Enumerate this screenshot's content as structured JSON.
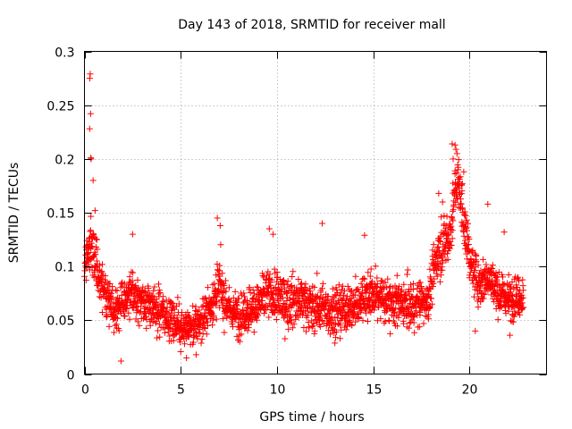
{
  "chart_data": {
    "type": "scatter",
    "title": "Day 143 of 2018, SRMTID for receiver mall",
    "xlabel": "GPS time / hours",
    "ylabel": "SRMTID / TECUs",
    "xlim": [
      0,
      24
    ],
    "ylim": [
      0,
      0.3
    ],
    "x_ticks": [
      "0",
      "5",
      "10",
      "15",
      "20"
    ],
    "y_ticks": [
      "0",
      "0.05",
      "0.1",
      "0.15",
      "0.2",
      "0.25",
      "0.3"
    ],
    "grid": true,
    "marker": "+",
    "series": [
      {
        "name": "SRMTID",
        "color": "#ff0000",
        "trend": [
          [
            0.0,
            0.095
          ],
          [
            0.15,
            0.115
          ],
          [
            0.3,
            0.125
          ],
          [
            0.45,
            0.11
          ],
          [
            0.6,
            0.1
          ],
          [
            0.8,
            0.09
          ],
          [
            1.0,
            0.078
          ],
          [
            1.3,
            0.068
          ],
          [
            1.6,
            0.062
          ],
          [
            2.0,
            0.066
          ],
          [
            2.5,
            0.075
          ],
          [
            3.0,
            0.068
          ],
          [
            3.5,
            0.062
          ],
          [
            4.0,
            0.058
          ],
          [
            4.5,
            0.052
          ],
          [
            5.0,
            0.045
          ],
          [
            5.5,
            0.042
          ],
          [
            6.0,
            0.048
          ],
          [
            6.5,
            0.062
          ],
          [
            7.0,
            0.082
          ],
          [
            7.3,
            0.07
          ],
          [
            7.6,
            0.058
          ],
          [
            8.0,
            0.056
          ],
          [
            8.5,
            0.06
          ],
          [
            9.0,
            0.064
          ],
          [
            9.5,
            0.075
          ],
          [
            10.0,
            0.072
          ],
          [
            10.5,
            0.066
          ],
          [
            11.0,
            0.07
          ],
          [
            11.5,
            0.066
          ],
          [
            12.0,
            0.062
          ],
          [
            12.5,
            0.06
          ],
          [
            13.0,
            0.058
          ],
          [
            13.5,
            0.06
          ],
          [
            14.0,
            0.062
          ],
          [
            14.5,
            0.072
          ],
          [
            15.0,
            0.074
          ],
          [
            15.5,
            0.07
          ],
          [
            16.0,
            0.066
          ],
          [
            16.5,
            0.064
          ],
          [
            17.0,
            0.063
          ],
          [
            17.5,
            0.066
          ],
          [
            17.9,
            0.072
          ],
          [
            18.3,
            0.11
          ],
          [
            18.7,
            0.12
          ],
          [
            19.0,
            0.13
          ],
          [
            19.3,
            0.18
          ],
          [
            19.5,
            0.17
          ],
          [
            19.8,
            0.13
          ],
          [
            20.1,
            0.1
          ],
          [
            20.5,
            0.085
          ],
          [
            21.0,
            0.09
          ],
          [
            21.5,
            0.075
          ],
          [
            22.0,
            0.07
          ],
          [
            22.5,
            0.072
          ],
          [
            22.8,
            0.07
          ]
        ],
        "spread": [
          [
            0.0,
            0.025
          ],
          [
            0.6,
            0.035
          ],
          [
            1.0,
            0.025
          ],
          [
            6.5,
            0.022
          ],
          [
            7.0,
            0.03
          ],
          [
            7.5,
            0.022
          ],
          [
            9.5,
            0.028
          ],
          [
            18.0,
            0.025
          ],
          [
            18.5,
            0.03
          ],
          [
            19.3,
            0.03
          ],
          [
            20.0,
            0.025
          ],
          [
            22.8,
            0.022
          ]
        ],
        "points": [
          [
            0.28,
            0.275
          ],
          [
            0.3,
            0.279
          ],
          [
            0.32,
            0.242
          ],
          [
            0.27,
            0.228
          ],
          [
            0.35,
            0.2
          ],
          [
            0.33,
            0.201
          ],
          [
            0.45,
            0.18
          ],
          [
            0.55,
            0.152
          ],
          [
            1.9,
            0.012
          ],
          [
            19.1,
            0.214
          ],
          [
            19.25,
            0.213
          ],
          [
            19.35,
            0.205
          ],
          [
            19.4,
            0.19
          ],
          [
            19.15,
            0.2
          ],
          [
            19.6,
            0.176
          ],
          [
            19.7,
            0.188
          ],
          [
            12.35,
            0.14
          ],
          [
            6.9,
            0.145
          ],
          [
            7.05,
            0.138
          ],
          [
            9.6,
            0.135
          ],
          [
            9.8,
            0.13
          ],
          [
            14.55,
            0.129
          ],
          [
            18.4,
            0.168
          ],
          [
            18.6,
            0.16
          ],
          [
            20.95,
            0.158
          ],
          [
            21.8,
            0.132
          ],
          [
            2.5,
            0.13
          ],
          [
            5.3,
            0.015
          ],
          [
            5.8,
            0.018
          ],
          [
            22.1,
            0.036
          ],
          [
            20.3,
            0.04
          ]
        ]
      }
    ]
  }
}
